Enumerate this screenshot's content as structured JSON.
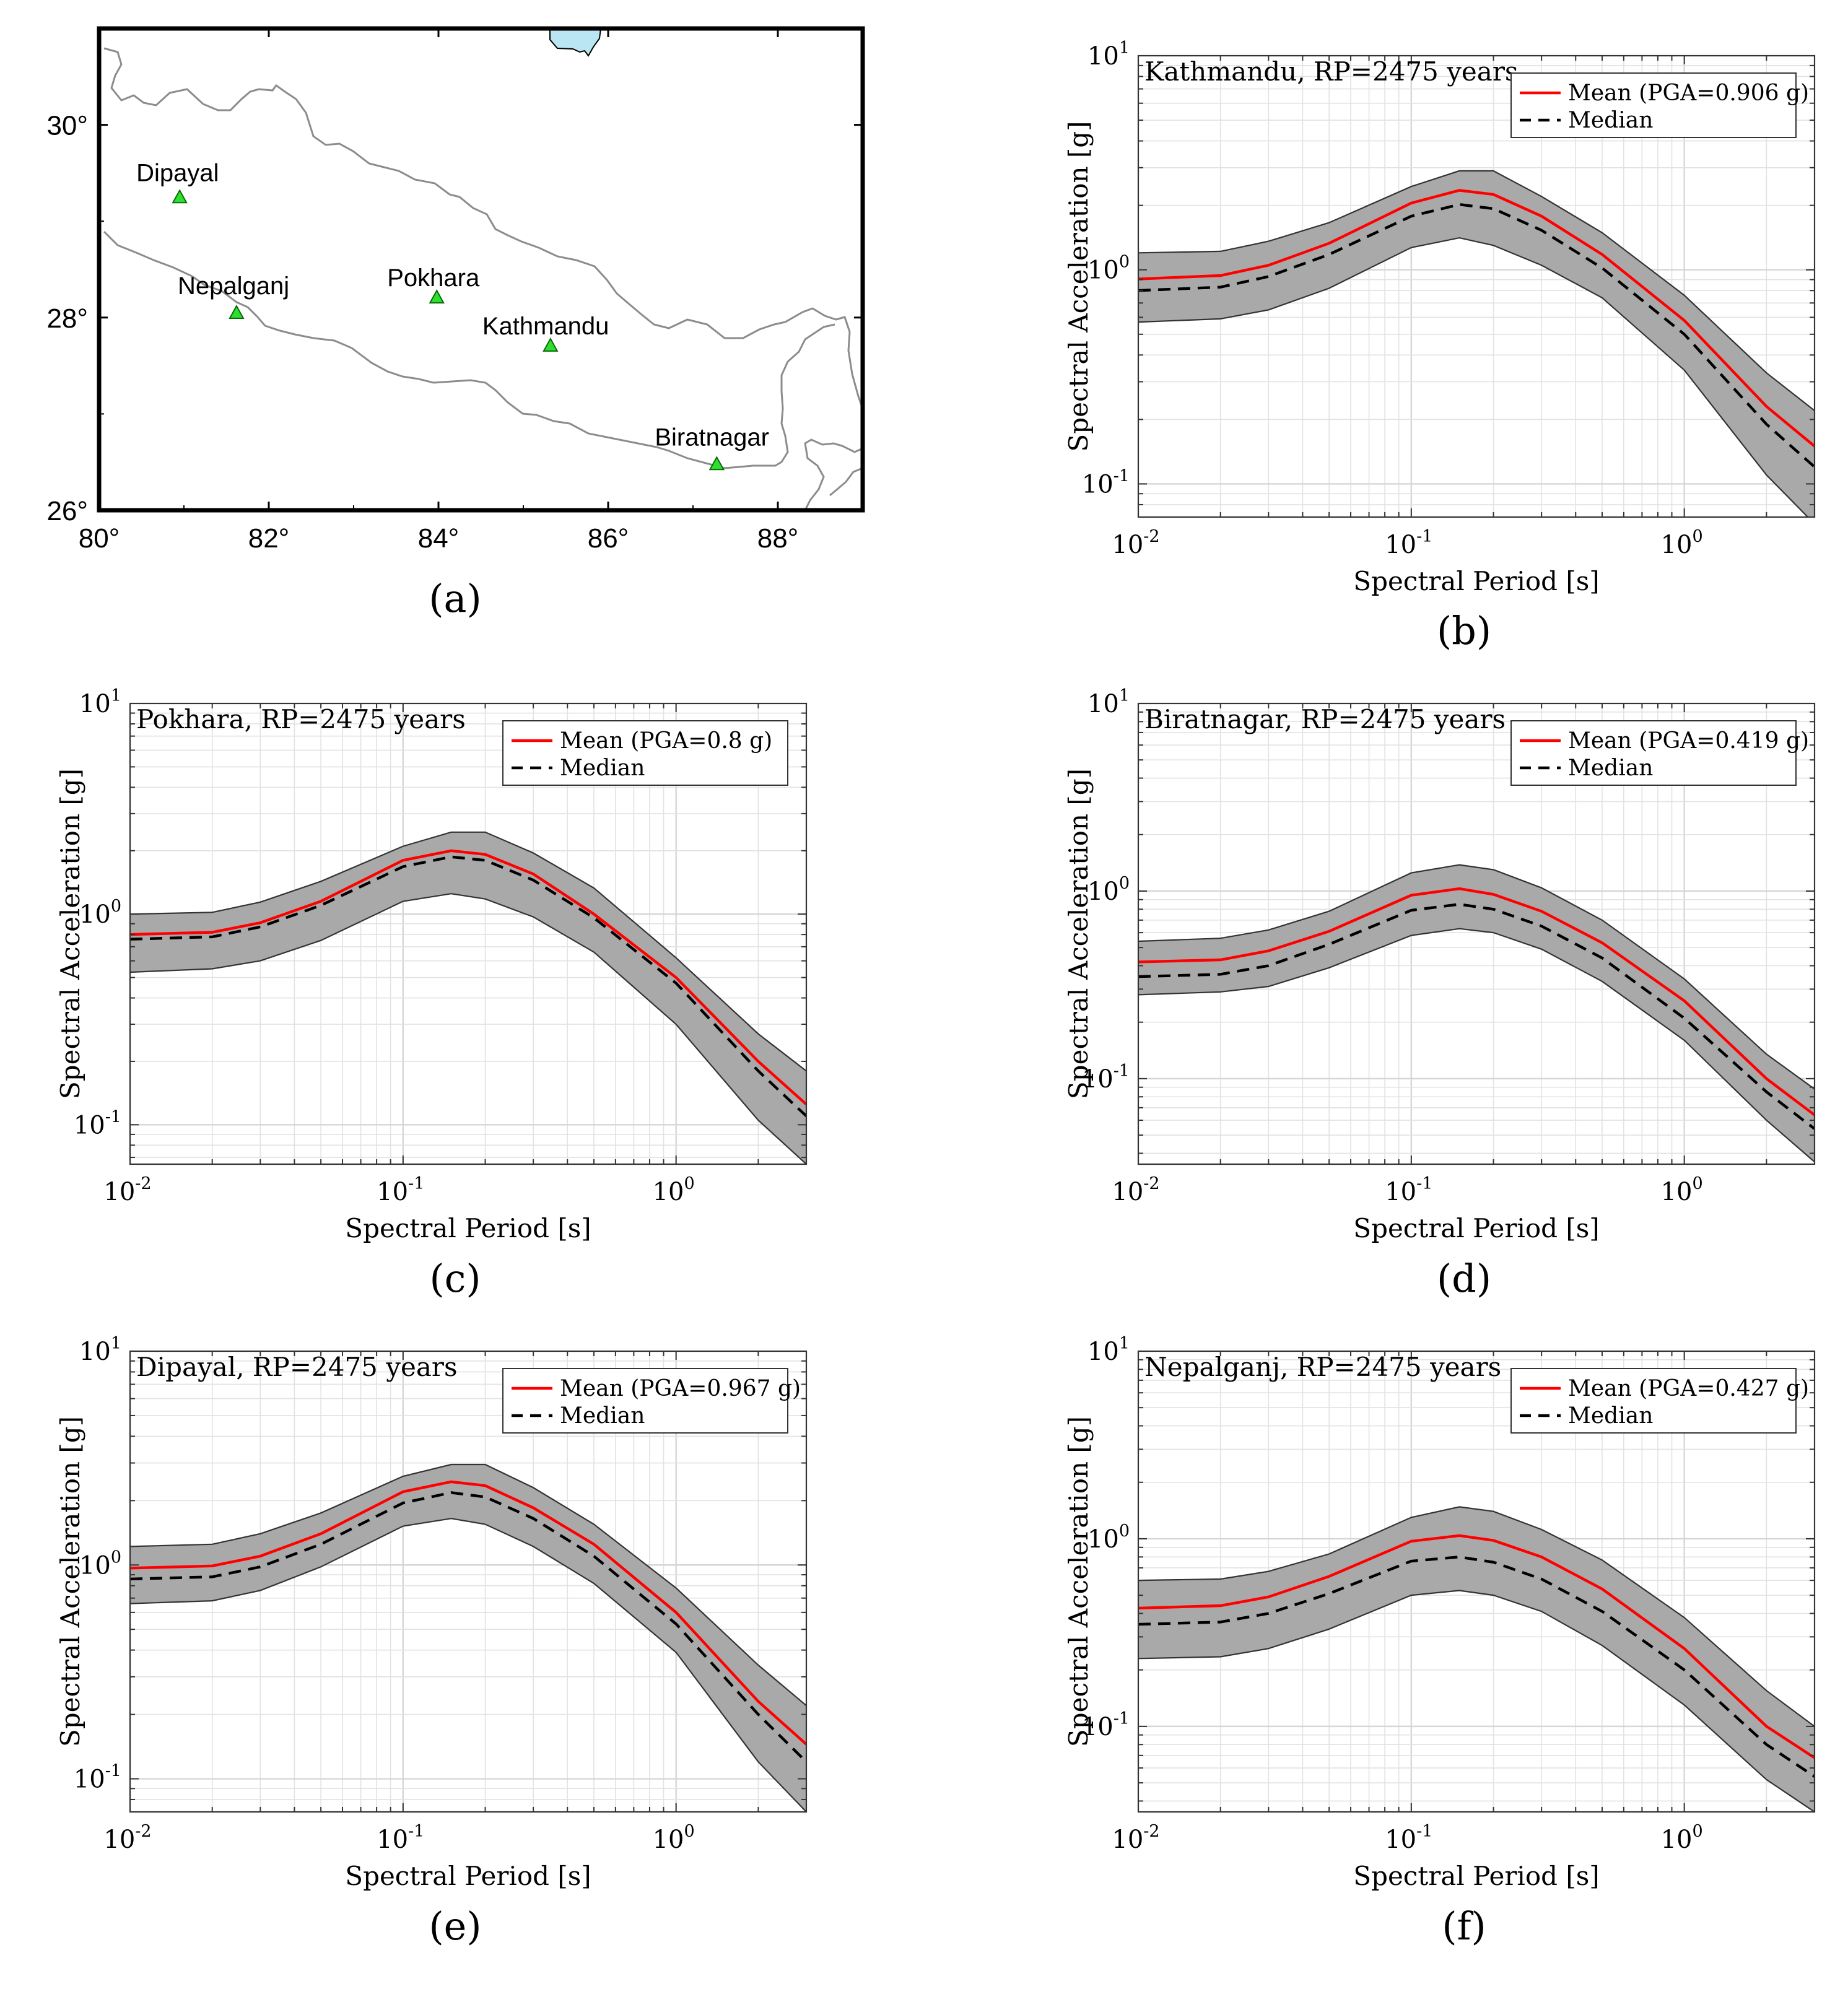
{
  "colors": {
    "mean": "#ff0000",
    "median": "#000000",
    "band_fill": "#a9a9a9",
    "band_edge": "#333333",
    "grid": "#e2e2e2",
    "station_marker": "#2ee02e",
    "water": "#b9e6f2",
    "border": "#8c8c8c"
  },
  "panel_labels": [
    "(a)",
    "(b)",
    "(c)",
    "(d)",
    "(e)",
    "(f)"
  ],
  "map": {
    "label": "(a)",
    "lon_ticks": [
      "80°",
      "82°",
      "84°",
      "86°",
      "88°"
    ],
    "lat_ticks": [
      "30°",
      "28°",
      "26°"
    ],
    "stations": [
      {
        "name": "Dipayal",
        "lon": 80.95,
        "lat": 29.25
      },
      {
        "name": "Nepalganj",
        "lon": 81.62,
        "lat": 28.05
      },
      {
        "name": "Pokhara",
        "lon": 83.98,
        "lat": 28.21
      },
      {
        "name": "Kathmandu",
        "lon": 85.32,
        "lat": 27.71
      },
      {
        "name": "Biratnagar",
        "lon": 87.28,
        "lat": 26.48
      }
    ]
  },
  "chart_data": [
    {
      "panel": "(b)",
      "type": "line",
      "title": "Kathmandu, RP=2475 years",
      "xlabel": "Spectral Period [s]",
      "ylabel": "Spectral Acceleration [g]",
      "xscale": "log",
      "yscale": "log",
      "xlim": [
        0.01,
        3
      ],
      "ylim": [
        0.07,
        10
      ],
      "x_ticks": [
        {
          "base": "10",
          "exp": "-2"
        },
        {
          "base": "10",
          "exp": "-1"
        },
        {
          "base": "10",
          "exp": "0"
        }
      ],
      "y_ticks": [
        {
          "base": "10",
          "exp": "-1",
          "v": 0.1
        },
        {
          "base": "10",
          "exp": "0",
          "v": 1
        },
        {
          "base": "10",
          "exp": "1",
          "v": 10
        }
      ],
      "legend": {
        "position": "top-right",
        "mean": "Mean (PGA=0.906 g)",
        "median": "Median"
      },
      "x": [
        0.01,
        0.02,
        0.03,
        0.05,
        0.1,
        0.15,
        0.2,
        0.3,
        0.5,
        1.0,
        2.0,
        3.0
      ],
      "series": [
        {
          "name": "Mean",
          "values": [
            0.906,
            0.94,
            1.05,
            1.33,
            2.05,
            2.35,
            2.25,
            1.78,
            1.18,
            0.58,
            0.23,
            0.15
          ]
        },
        {
          "name": "Median",
          "values": [
            0.8,
            0.83,
            0.93,
            1.18,
            1.78,
            2.02,
            1.93,
            1.53,
            1.02,
            0.5,
            0.19,
            0.12
          ]
        },
        {
          "name": "Upper bound",
          "values": [
            1.2,
            1.22,
            1.36,
            1.66,
            2.45,
            2.9,
            2.9,
            2.2,
            1.49,
            0.76,
            0.33,
            0.22
          ]
        },
        {
          "name": "Lower bound",
          "values": [
            0.57,
            0.59,
            0.65,
            0.82,
            1.27,
            1.41,
            1.3,
            1.05,
            0.74,
            0.34,
            0.11,
            0.065
          ]
        }
      ]
    },
    {
      "panel": "(c)",
      "type": "line",
      "title": "Pokhara, RP=2475 years",
      "xlabel": "Spectral Period [s]",
      "ylabel": "Spectral Acceleration [g]",
      "xscale": "log",
      "yscale": "log",
      "xlim": [
        0.01,
        3
      ],
      "ylim": [
        0.065,
        10
      ],
      "x_ticks": [
        {
          "base": "10",
          "exp": "-2"
        },
        {
          "base": "10",
          "exp": "-1"
        },
        {
          "base": "10",
          "exp": "0"
        }
      ],
      "y_ticks": [
        {
          "base": "10",
          "exp": "-1",
          "v": 0.1
        },
        {
          "base": "10",
          "exp": "0",
          "v": 1
        },
        {
          "base": "10",
          "exp": "1",
          "v": 10
        }
      ],
      "legend": {
        "position": "top-right",
        "mean": "Mean (PGA=0.8 g)",
        "median": "Median"
      },
      "x": [
        0.01,
        0.02,
        0.03,
        0.05,
        0.1,
        0.15,
        0.2,
        0.3,
        0.5,
        1.0,
        2.0,
        3.0
      ],
      "series": [
        {
          "name": "Mean",
          "values": [
            0.8,
            0.82,
            0.91,
            1.15,
            1.8,
            2.0,
            1.92,
            1.55,
            1.0,
            0.5,
            0.2,
            0.125
          ]
        },
        {
          "name": "Median",
          "values": [
            0.76,
            0.78,
            0.87,
            1.1,
            1.68,
            1.87,
            1.8,
            1.45,
            0.96,
            0.47,
            0.18,
            0.11
          ]
        },
        {
          "name": "Upper bound",
          "values": [
            1.0,
            1.02,
            1.14,
            1.43,
            2.1,
            2.45,
            2.45,
            1.95,
            1.33,
            0.62,
            0.27,
            0.18
          ]
        },
        {
          "name": "Lower bound",
          "values": [
            0.53,
            0.55,
            0.6,
            0.75,
            1.15,
            1.25,
            1.18,
            0.97,
            0.66,
            0.3,
            0.105,
            0.065
          ]
        }
      ]
    },
    {
      "panel": "(d)",
      "type": "line",
      "title": "Biratnagar, RP=2475 years",
      "xlabel": "Spectral Period [s]",
      "ylabel": "Spectral Acceleration [g]",
      "xscale": "log",
      "yscale": "log",
      "xlim": [
        0.01,
        3
      ],
      "ylim": [
        0.035,
        10
      ],
      "x_ticks": [
        {
          "base": "10",
          "exp": "-2"
        },
        {
          "base": "10",
          "exp": "-1"
        },
        {
          "base": "10",
          "exp": "0"
        }
      ],
      "y_ticks": [
        {
          "base": "10",
          "exp": "-1",
          "v": 0.1
        },
        {
          "base": "10",
          "exp": "0",
          "v": 1
        },
        {
          "base": "10",
          "exp": "1",
          "v": 10
        }
      ],
      "legend": {
        "position": "top-right",
        "mean": "Mean (PGA=0.419 g)",
        "median": "Median"
      },
      "x": [
        0.01,
        0.02,
        0.03,
        0.05,
        0.1,
        0.15,
        0.2,
        0.3,
        0.5,
        1.0,
        2.0,
        3.0
      ],
      "series": [
        {
          "name": "Mean",
          "values": [
            0.419,
            0.43,
            0.48,
            0.61,
            0.95,
            1.03,
            0.96,
            0.78,
            0.53,
            0.26,
            0.1,
            0.064
          ]
        },
        {
          "name": "Median",
          "values": [
            0.35,
            0.36,
            0.4,
            0.52,
            0.79,
            0.85,
            0.8,
            0.65,
            0.44,
            0.21,
            0.085,
            0.054
          ]
        },
        {
          "name": "Upper bound",
          "values": [
            0.54,
            0.56,
            0.62,
            0.78,
            1.25,
            1.38,
            1.3,
            1.04,
            0.7,
            0.34,
            0.135,
            0.088
          ]
        },
        {
          "name": "Lower bound",
          "values": [
            0.28,
            0.29,
            0.31,
            0.39,
            0.58,
            0.63,
            0.6,
            0.49,
            0.33,
            0.16,
            0.06,
            0.036
          ]
        }
      ]
    },
    {
      "panel": "(e)",
      "type": "line",
      "title": "Dipayal, RP=2475 years",
      "xlabel": "Spectral Period [s]",
      "ylabel": "Spectral Acceleration [g]",
      "xscale": "log",
      "yscale": "log",
      "xlim": [
        0.01,
        3
      ],
      "ylim": [
        0.07,
        10
      ],
      "x_ticks": [
        {
          "base": "10",
          "exp": "-2"
        },
        {
          "base": "10",
          "exp": "-1"
        },
        {
          "base": "10",
          "exp": "0"
        }
      ],
      "y_ticks": [
        {
          "base": "10",
          "exp": "-1",
          "v": 0.1
        },
        {
          "base": "10",
          "exp": "0",
          "v": 1
        },
        {
          "base": "10",
          "exp": "1",
          "v": 10
        }
      ],
      "legend": {
        "position": "top-right",
        "mean": "Mean (PGA=0.967 g)",
        "median": "Median"
      },
      "x": [
        0.01,
        0.02,
        0.03,
        0.05,
        0.1,
        0.15,
        0.2,
        0.3,
        0.5,
        1.0,
        2.0,
        3.0
      ],
      "series": [
        {
          "name": "Mean",
          "values": [
            0.967,
            0.99,
            1.1,
            1.4,
            2.2,
            2.45,
            2.35,
            1.85,
            1.25,
            0.6,
            0.23,
            0.145
          ]
        },
        {
          "name": "Median",
          "values": [
            0.86,
            0.88,
            0.98,
            1.25,
            1.95,
            2.18,
            2.08,
            1.65,
            1.1,
            0.53,
            0.2,
            0.12
          ]
        },
        {
          "name": "Upper bound",
          "values": [
            1.22,
            1.25,
            1.4,
            1.75,
            2.6,
            2.95,
            2.95,
            2.3,
            1.55,
            0.78,
            0.34,
            0.22
          ]
        },
        {
          "name": "Lower bound",
          "values": [
            0.66,
            0.68,
            0.76,
            0.98,
            1.52,
            1.65,
            1.55,
            1.22,
            0.82,
            0.39,
            0.12,
            0.07
          ]
        }
      ]
    },
    {
      "panel": "(f)",
      "type": "line",
      "title": "Nepalganj, RP=2475 years",
      "xlabel": "Spectral Period [s]",
      "ylabel": "Spectral Acceleration [g]",
      "xscale": "log",
      "yscale": "log",
      "xlim": [
        0.01,
        3
      ],
      "ylim": [
        0.035,
        10
      ],
      "x_ticks": [
        {
          "base": "10",
          "exp": "-2"
        },
        {
          "base": "10",
          "exp": "-1"
        },
        {
          "base": "10",
          "exp": "0"
        }
      ],
      "y_ticks": [
        {
          "base": "10",
          "exp": "-1",
          "v": 0.1
        },
        {
          "base": "10",
          "exp": "0",
          "v": 1
        },
        {
          "base": "10",
          "exp": "1",
          "v": 10
        }
      ],
      "legend": {
        "position": "top-right",
        "mean": "Mean (PGA=0.427 g)",
        "median": "Median"
      },
      "x": [
        0.01,
        0.02,
        0.03,
        0.05,
        0.1,
        0.15,
        0.2,
        0.3,
        0.5,
        1.0,
        2.0,
        3.0
      ],
      "series": [
        {
          "name": "Mean",
          "values": [
            0.427,
            0.44,
            0.49,
            0.63,
            0.97,
            1.04,
            0.98,
            0.8,
            0.54,
            0.26,
            0.1,
            0.068
          ]
        },
        {
          "name": "Median",
          "values": [
            0.35,
            0.36,
            0.4,
            0.51,
            0.76,
            0.8,
            0.75,
            0.61,
            0.41,
            0.2,
            0.08,
            0.054
          ]
        },
        {
          "name": "Upper bound",
          "values": [
            0.6,
            0.61,
            0.67,
            0.83,
            1.3,
            1.48,
            1.4,
            1.12,
            0.77,
            0.38,
            0.155,
            0.1
          ]
        },
        {
          "name": "Lower bound",
          "values": [
            0.23,
            0.235,
            0.26,
            0.33,
            0.5,
            0.53,
            0.5,
            0.41,
            0.27,
            0.13,
            0.052,
            0.035
          ]
        }
      ]
    }
  ]
}
